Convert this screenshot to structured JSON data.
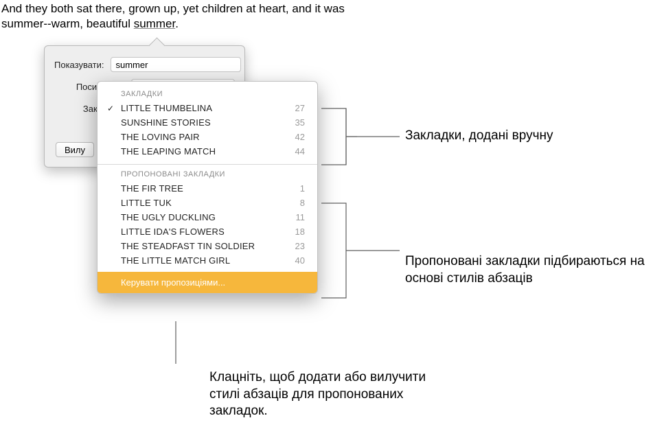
{
  "doc": {
    "line1": "And they both sat there, grown up, yet children at heart, and it was",
    "line2_pre": "summer--warm, beautiful ",
    "underlined": "summer",
    "line2_post": "."
  },
  "panel": {
    "show_label": "Показувати:",
    "show_value": "summer",
    "link_label": "Посилання:",
    "bookmark_label": "Закладка:",
    "delete_button": "Вилу"
  },
  "dropdown": {
    "section1_title": "ЗАКЛАДКИ",
    "section2_title": "ПРОПОНОВАНІ ЗАКЛАДКИ",
    "manual_items": [
      {
        "label": "LITTLE THUMBELINA",
        "page": "27",
        "checked": true
      },
      {
        "label": "SUNSHINE STORIES",
        "page": "35",
        "checked": false
      },
      {
        "label": "THE LOVING PAIR",
        "page": "42",
        "checked": false
      },
      {
        "label": "THE LEAPING MATCH",
        "page": "44",
        "checked": false
      }
    ],
    "suggested_items": [
      {
        "label": "THE FIR TREE",
        "page": "1"
      },
      {
        "label": "LITTLE TUK",
        "page": "8"
      },
      {
        "label": "THE UGLY DUCKLING",
        "page": "11"
      },
      {
        "label": "LITTLE IDA'S FLOWERS",
        "page": "18"
      },
      {
        "label": "THE STEADFAST TIN SOLDIER",
        "page": "23"
      },
      {
        "label": "THE LITTLE MATCH GIRL",
        "page": "40"
      }
    ],
    "manage_label": "Керувати пропозиціями..."
  },
  "callouts": {
    "c1": "Закладки, додані вручну",
    "c2": "Пропоновані закладки підбираються на основі стилів абзаців",
    "c3": "Клацніть, щоб додати або вилучити стилі абзаців для пропонованих закладок."
  },
  "colors": {
    "accent": "#f6b73c",
    "panel_bg": "#eeeeee",
    "border": "#b8b8b8",
    "muted": "#9a9a9a"
  }
}
